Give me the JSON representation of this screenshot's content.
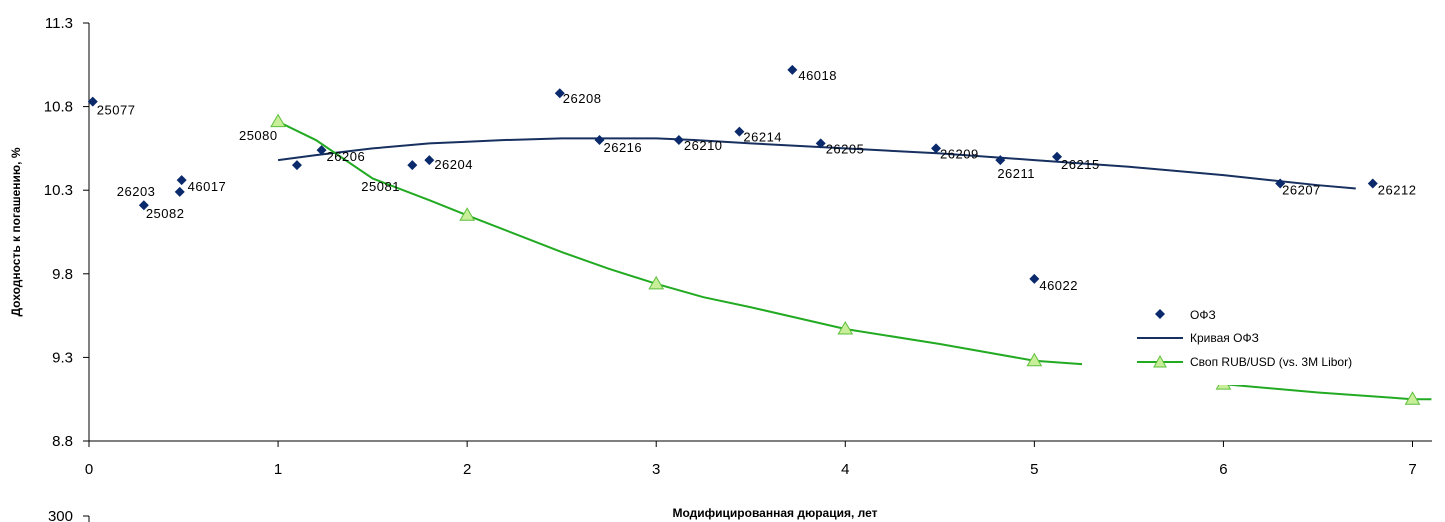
{
  "chart_data": {
    "type": "scatter",
    "title": "",
    "xlabel": "Модифицированная дюрация, лет",
    "ylabel": "Доходность к погашению, %",
    "xlim": [
      0,
      7.1
    ],
    "ylim": [
      8.8,
      11.3
    ],
    "x_ticks": [
      "0",
      "1",
      "2",
      "3",
      "4",
      "5",
      "6",
      "7"
    ],
    "y_ticks": [
      "8.8",
      "9.3",
      "9.8",
      "10.3",
      "10.8",
      "11.3"
    ],
    "second_axis_tick": "300",
    "grid": false,
    "legend_position": "right",
    "colors": {
      "ofz": "#0b2a6b",
      "curve": "#17305f",
      "swap": "#22aa22",
      "swap_marker_fill": "#c8ee9a"
    },
    "series": [
      {
        "name": "ОФЗ",
        "kind": "points",
        "points": [
          {
            "label": "25077",
            "x": 0.02,
            "y": 10.83
          },
          {
            "label": "25082",
            "x": 0.29,
            "y": 10.21
          },
          {
            "label": "26203",
            "x": 0.48,
            "y": 10.29
          },
          {
            "label": "46017",
            "x": 0.49,
            "y": 10.36
          },
          {
            "label": "25080",
            "x": 1.1,
            "y": 10.45
          },
          {
            "label": "26206",
            "x": 1.23,
            "y": 10.54
          },
          {
            "label": "25081",
            "x": 1.71,
            "y": 10.45
          },
          {
            "label": "26204",
            "x": 1.8,
            "y": 10.48
          },
          {
            "label": "26208",
            "x": 2.49,
            "y": 10.88
          },
          {
            "label": "26216",
            "x": 2.7,
            "y": 10.6
          },
          {
            "label": "26210",
            "x": 3.12,
            "y": 10.6
          },
          {
            "label": "26214",
            "x": 3.44,
            "y": 10.65
          },
          {
            "label": "46018",
            "x": 3.72,
            "y": 11.02
          },
          {
            "label": "26205",
            "x": 3.87,
            "y": 10.58
          },
          {
            "label": "26209",
            "x": 4.48,
            "y": 10.55
          },
          {
            "label": "26211",
            "x": 4.82,
            "y": 10.48
          },
          {
            "label": "46022",
            "x": 5.0,
            "y": 9.77
          },
          {
            "label": "26215",
            "x": 5.12,
            "y": 10.5
          },
          {
            "label": "26207",
            "x": 6.3,
            "y": 10.34
          },
          {
            "label": "26212",
            "x": 6.79,
            "y": 10.34
          }
        ]
      },
      {
        "name": "Кривая ОФЗ",
        "kind": "line",
        "x": [
          1.0,
          1.2,
          1.5,
          1.8,
          2.0,
          2.2,
          2.5,
          2.8,
          3.0,
          3.2,
          3.5,
          4.0,
          4.5,
          5.0,
          5.5,
          6.0,
          6.5,
          6.7
        ],
        "y": [
          10.48,
          10.51,
          10.55,
          10.58,
          10.59,
          10.6,
          10.61,
          10.61,
          10.61,
          10.6,
          10.58,
          10.55,
          10.52,
          10.48,
          10.44,
          10.39,
          10.33,
          10.31
        ]
      },
      {
        "name": "Своп RUB/USD (vs. 3M Libor)",
        "kind": "line_markers",
        "x": [
          1.0,
          1.2,
          1.5,
          1.8,
          2.0,
          2.25,
          2.5,
          2.75,
          3.0,
          3.25,
          3.5,
          4.0,
          4.5,
          5.0,
          5.25,
          5.5,
          6.0,
          6.5,
          7.0,
          7.1
        ],
        "y": [
          10.71,
          10.6,
          10.37,
          10.24,
          10.15,
          10.04,
          9.93,
          9.83,
          9.74,
          9.66,
          9.6,
          9.47,
          9.38,
          9.28,
          9.26,
          9.2,
          9.14,
          9.09,
          9.05,
          9.05
        ],
        "markers_x": [
          1,
          2,
          3,
          4,
          5,
          6,
          7
        ],
        "markers_y": [
          10.71,
          10.15,
          9.74,
          9.47,
          9.28,
          9.14,
          9.05
        ]
      }
    ]
  }
}
